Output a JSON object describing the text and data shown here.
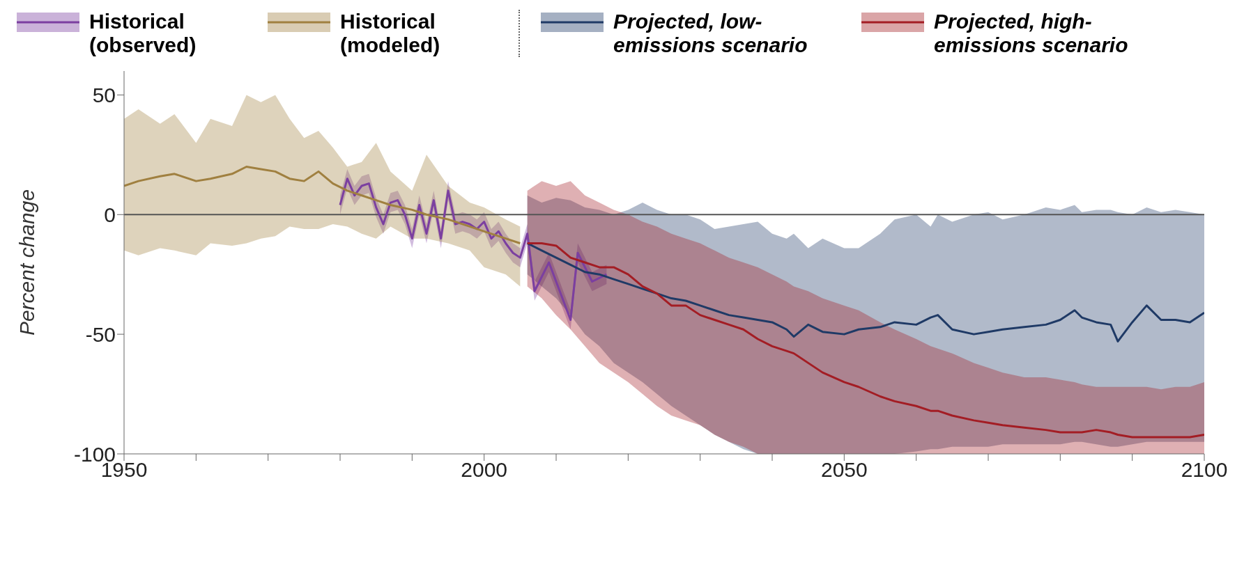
{
  "chart_data": {
    "type": "line",
    "ylabel": "Percent change",
    "xlim": [
      1950,
      2100
    ],
    "xticks": [
      1950,
      {
        "value": 1960,
        "label": null
      },
      {
        "value": 1970,
        "label": null
      },
      {
        "value": 1980,
        "label": null
      },
      {
        "value": 1990,
        "label": null
      },
      2000,
      {
        "value": 2010,
        "label": null
      },
      {
        "value": 2020,
        "label": null
      },
      {
        "value": 2030,
        "label": null
      },
      {
        "value": 2040,
        "label": null
      },
      2050,
      {
        "value": 2060,
        "label": null
      },
      {
        "value": 2070,
        "label": null
      },
      {
        "value": 2080,
        "label": null
      },
      {
        "value": 2090,
        "label": null
      },
      2100
    ],
    "ylim": [
      -100,
      60
    ],
    "yticks": [
      -100,
      -50,
      0,
      50
    ],
    "ref_lines": [
      {
        "axis": "y",
        "value": 0,
        "color": "#555555"
      }
    ],
    "legend": "top",
    "marker": "none",
    "line_style": "solid",
    "grid": false,
    "series": [
      {
        "name": "Historical (observed)",
        "color": "#7b3fa0",
        "x": [
          1980,
          1981,
          1982,
          1983,
          1984,
          1985,
          1986,
          1987,
          1988,
          1989,
          1990,
          1991,
          1992,
          1993,
          1994,
          1995,
          1996,
          1997,
          1998,
          1999,
          2000,
          2001,
          2002,
          2003,
          2004,
          2005,
          2006,
          2007,
          2009,
          2012,
          2013,
          2015,
          2017
        ],
        "values": [
          4,
          15,
          8,
          12,
          13,
          3,
          -4,
          5,
          6,
          0,
          -10,
          4,
          -8,
          6,
          -10,
          10,
          -4,
          -3,
          -4,
          -6,
          -3,
          -10,
          -7,
          -12,
          -16,
          -18,
          -8,
          -32,
          -20,
          -44,
          -16,
          -28,
          -25
        ],
        "lower": [
          0,
          11,
          4,
          8,
          9,
          -1,
          -8,
          1,
          2,
          -4,
          -14,
          0,
          -12,
          2,
          -14,
          6,
          -8,
          -7,
          -8,
          -10,
          -7,
          -14,
          -11,
          -16,
          -20,
          -22,
          -12,
          -36,
          -24,
          -48,
          -20,
          -32,
          -29
        ],
        "upper": [
          8,
          19,
          12,
          16,
          17,
          7,
          0,
          9,
          10,
          4,
          -6,
          8,
          -4,
          10,
          -6,
          14,
          0,
          1,
          0,
          -2,
          1,
          -6,
          -3,
          -8,
          -12,
          -14,
          -4,
          -28,
          -16,
          -40,
          -12,
          -24,
          -21
        ]
      },
      {
        "name": "Historical (modeled)",
        "color": "#a08040",
        "x": [
          1950,
          1952,
          1955,
          1957,
          1960,
          1962,
          1965,
          1967,
          1969,
          1971,
          1973,
          1975,
          1977,
          1979,
          1981,
          1983,
          1985,
          1987,
          1990,
          1992,
          1995,
          1998,
          2000,
          2003,
          2005
        ],
        "values": [
          12,
          14,
          16,
          17,
          14,
          15,
          17,
          20,
          19,
          18,
          15,
          14,
          18,
          13,
          10,
          8,
          6,
          4,
          2,
          0,
          -2,
          -5,
          -7,
          -10,
          -12
        ],
        "upper": [
          40,
          44,
          38,
          42,
          30,
          40,
          37,
          50,
          47,
          50,
          40,
          32,
          35,
          28,
          20,
          22,
          30,
          18,
          10,
          25,
          12,
          5,
          3,
          -2,
          -5
        ],
        "lower": [
          -15,
          -17,
          -14,
          -15,
          -17,
          -12,
          -13,
          -12,
          -10,
          -9,
          -5,
          -6,
          -6,
          -4,
          -5,
          -8,
          -10,
          -5,
          -10,
          -10,
          -12,
          -15,
          -22,
          -25,
          -30
        ]
      },
      {
        "name": "Projected, low-emissions scenario",
        "color": "#1f3a66",
        "x": [
          2006,
          2008,
          2010,
          2012,
          2014,
          2016,
          2018,
          2020,
          2022,
          2024,
          2026,
          2028,
          2030,
          2032,
          2034,
          2036,
          2038,
          2040,
          2042,
          2043,
          2045,
          2047,
          2050,
          2052,
          2055,
          2057,
          2060,
          2062,
          2063,
          2065,
          2068,
          2070,
          2072,
          2075,
          2078,
          2080,
          2082,
          2083,
          2085,
          2087,
          2088,
          2090,
          2092,
          2094,
          2096,
          2098,
          2100
        ],
        "values": [
          -12,
          -15,
          -18,
          -21,
          -24,
          -25,
          -27,
          -29,
          -31,
          -33,
          -35,
          -36,
          -38,
          -40,
          -42,
          -43,
          -44,
          -45,
          -48,
          -51,
          -46,
          -49,
          -50,
          -48,
          -47,
          -45,
          -46,
          -43,
          -42,
          -48,
          -50,
          -49,
          -48,
          -47,
          -46,
          -44,
          -40,
          -43,
          -45,
          -46,
          -53,
          -45,
          -38,
          -44,
          -44,
          -45,
          -41
        ],
        "upper": [
          8,
          5,
          7,
          6,
          3,
          2,
          0,
          2,
          5,
          2,
          0,
          0,
          -2,
          -6,
          -5,
          -4,
          -3,
          -8,
          -10,
          -8,
          -14,
          -10,
          -14,
          -14,
          -8,
          -2,
          0,
          -5,
          0,
          -3,
          0,
          1,
          -2,
          0,
          3,
          2,
          4,
          1,
          2,
          2,
          1,
          0,
          3,
          1,
          2,
          1,
          0
        ],
        "lower": [
          -25,
          -30,
          -35,
          -42,
          -50,
          -55,
          -62,
          -66,
          -70,
          -75,
          -80,
          -84,
          -88,
          -92,
          -95,
          -98,
          -100,
          -100,
          -100,
          -100,
          -100,
          -100,
          -100,
          -100,
          -100,
          -100,
          -99,
          -98,
          -98,
          -97,
          -97,
          -97,
          -96,
          -96,
          -96,
          -96,
          -95,
          -95,
          -96,
          -97,
          -97,
          -96,
          -95,
          -95,
          -95,
          -95,
          -95
        ]
      },
      {
        "name": "Projected, high-emissions scenario",
        "color": "#a31d24",
        "x": [
          2006,
          2008,
          2010,
          2012,
          2014,
          2016,
          2018,
          2020,
          2022,
          2024,
          2026,
          2028,
          2030,
          2032,
          2034,
          2036,
          2038,
          2040,
          2042,
          2043,
          2045,
          2047,
          2050,
          2052,
          2055,
          2057,
          2060,
          2062,
          2063,
          2065,
          2068,
          2070,
          2072,
          2075,
          2078,
          2080,
          2082,
          2083,
          2085,
          2087,
          2088,
          2090,
          2092,
          2094,
          2096,
          2098,
          2100
        ],
        "values": [
          -12,
          -12,
          -13,
          -18,
          -20,
          -22,
          -22,
          -25,
          -30,
          -33,
          -38,
          -38,
          -42,
          -44,
          -46,
          -48,
          -52,
          -55,
          -57,
          -58,
          -62,
          -66,
          -70,
          -72,
          -76,
          -78,
          -80,
          -82,
          -82,
          -84,
          -86,
          -87,
          -88,
          -89,
          -90,
          -91,
          -91,
          -91,
          -90,
          -91,
          -92,
          -93,
          -93,
          -93,
          -93,
          -93,
          -92
        ],
        "upper": [
          10,
          14,
          12,
          14,
          8,
          5,
          2,
          0,
          -3,
          -5,
          -8,
          -10,
          -12,
          -15,
          -18,
          -20,
          -22,
          -25,
          -28,
          -30,
          -32,
          -35,
          -38,
          -40,
          -45,
          -48,
          -52,
          -55,
          -56,
          -58,
          -62,
          -64,
          -66,
          -68,
          -68,
          -69,
          -70,
          -71,
          -72,
          -72,
          -72,
          -72,
          -72,
          -73,
          -72,
          -72,
          -70
        ],
        "lower": [
          -30,
          -35,
          -42,
          -48,
          -55,
          -62,
          -66,
          -70,
          -75,
          -80,
          -84,
          -86,
          -88,
          -92,
          -95,
          -97,
          -100,
          -100,
          -100,
          -100,
          -100,
          -100,
          -100,
          -100,
          -100,
          -100,
          -100,
          -100,
          -100,
          -100,
          -100,
          -100,
          -100,
          -100,
          -100,
          -100,
          -100,
          -100,
          -100,
          -100,
          -100,
          -100,
          -100,
          -100,
          -100,
          -100,
          -100
        ]
      }
    ]
  }
}
